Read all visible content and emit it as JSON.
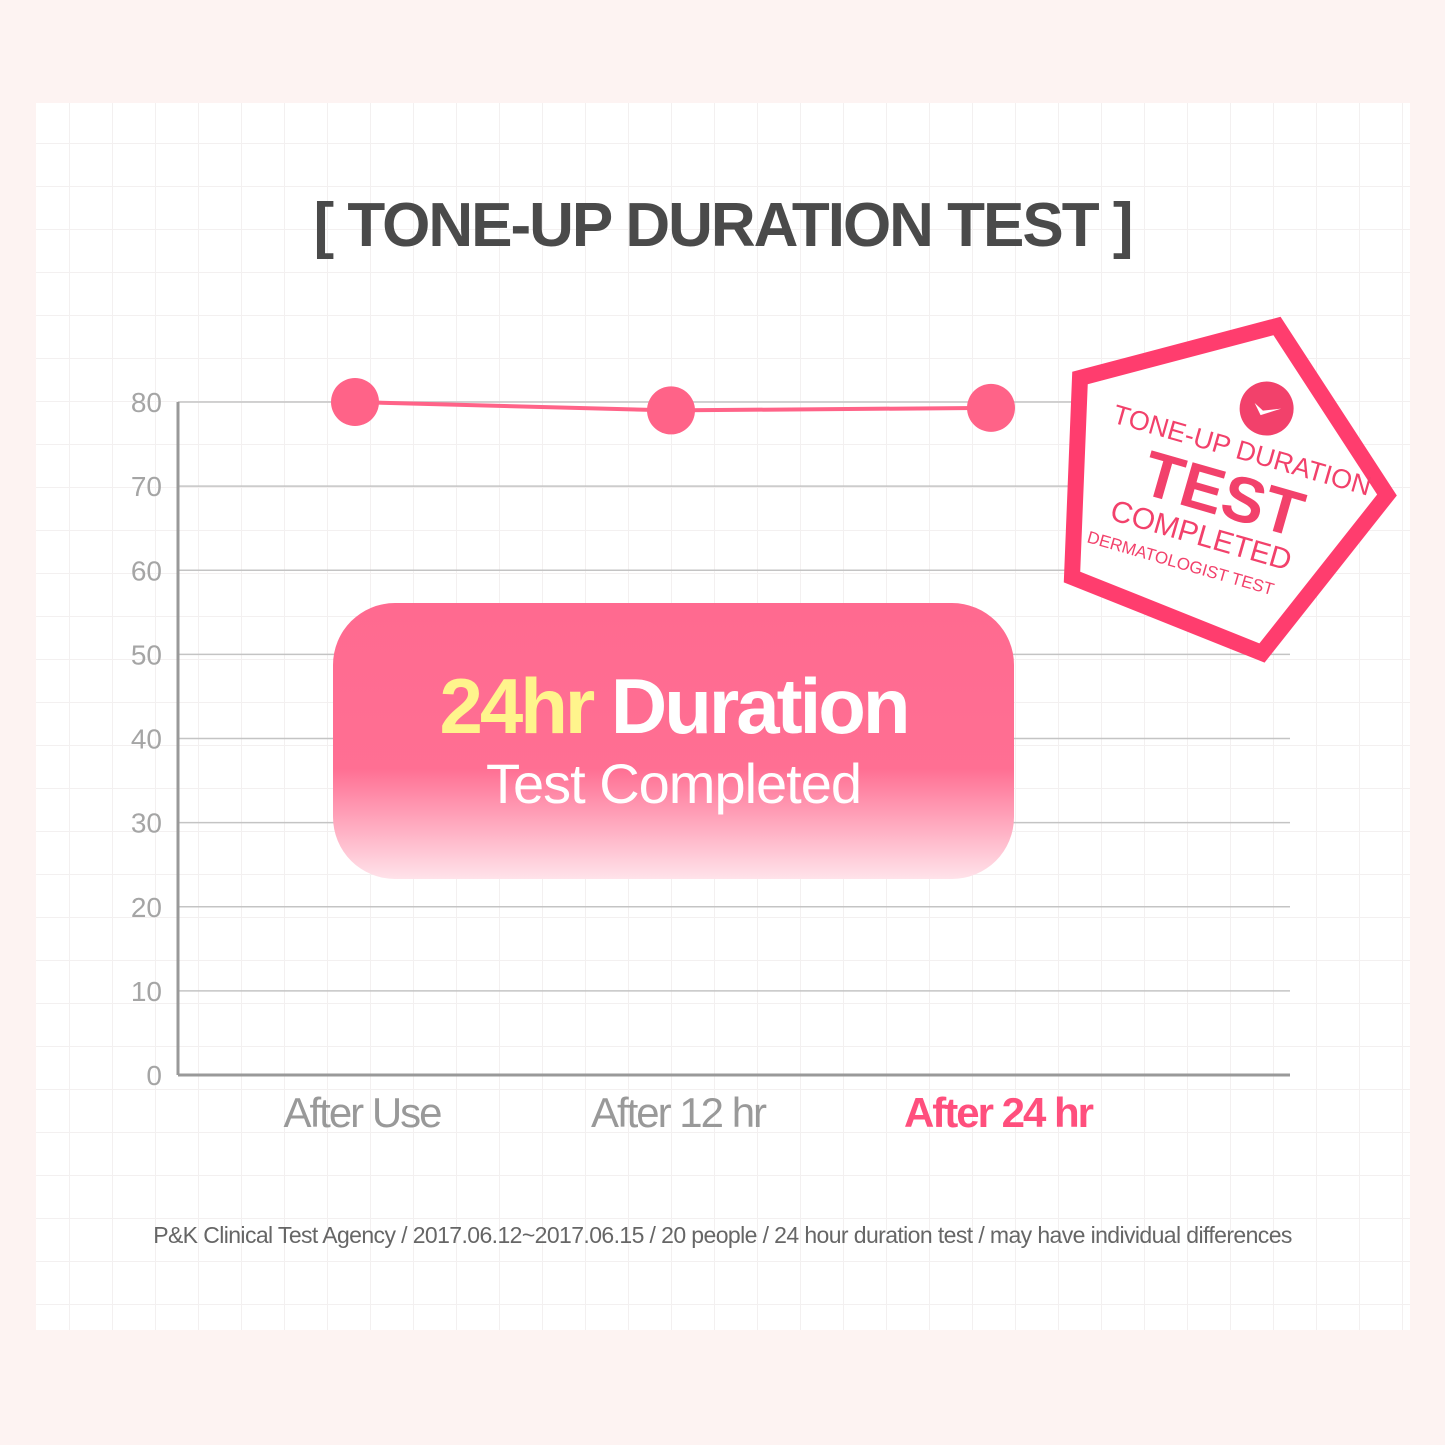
{
  "title": "[ TONE-UP DURATION TEST ]",
  "chart_data": {
    "type": "line",
    "title": "[ TONE-UP DURATION TEST ]",
    "categories": [
      "After Use",
      "After 12 hr",
      "After 24 hr"
    ],
    "values": [
      80,
      79,
      79.3
    ],
    "highlight_category": "After 24 hr",
    "ylim": [
      0,
      80
    ],
    "yticks": [
      0,
      10,
      20,
      30,
      40,
      50,
      60,
      70,
      80
    ],
    "grid": "horizontal",
    "colors": {
      "line": "#ff6388",
      "highlight_label": "#ff4f7d",
      "label": "#999999"
    }
  },
  "callout": {
    "highlight": "24hr",
    "main": "Duration",
    "sub": "Test Completed"
  },
  "badge": {
    "line1": "TONE-UP DURATION",
    "line2": "TEST",
    "line3": "COMPLETED",
    "line4": "DERMATOLOGIST TEST",
    "icon": "check-circle-icon",
    "color": "#ff3d6e"
  },
  "footnote": "P&K Clinical Test Agency / 2017.06.12~2017.06.15 / 20 people / 24 hour duration test / may have individual differences"
}
